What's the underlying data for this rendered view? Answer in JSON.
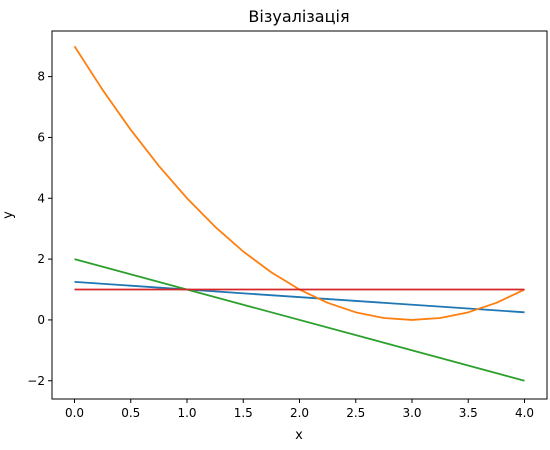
{
  "chart_data": {
    "type": "line",
    "title": "Візуалізація",
    "xlabel": "x",
    "ylabel": "y",
    "xlim": [
      -0.2,
      4.2
    ],
    "ylim": [
      -2.6,
      9.5
    ],
    "xticks": [
      0.0,
      0.5,
      1.0,
      1.5,
      2.0,
      2.5,
      3.0,
      3.5,
      4.0
    ],
    "xtick_labels": [
      "0.0",
      "0.5",
      "1.0",
      "1.5",
      "2.0",
      "2.5",
      "3.0",
      "3.5",
      "4.0"
    ],
    "yticks": [
      -2,
      0,
      2,
      4,
      6,
      8
    ],
    "ytick_labels": [
      "−2",
      "0",
      "2",
      "4",
      "6",
      "8"
    ],
    "grid": false,
    "series": [
      {
        "color": "#1f77b4",
        "x": [
          0,
          4
        ],
        "y": [
          1.25,
          0.25
        ]
      },
      {
        "color": "#ff7f0e",
        "x": [
          0,
          0.25,
          0.5,
          0.75,
          1,
          1.25,
          1.5,
          1.75,
          2,
          2.25,
          2.5,
          2.75,
          3,
          3.25,
          3.5,
          3.75,
          4
        ],
        "y": [
          9,
          7.5625,
          6.25,
          5.0625,
          4,
          3.0625,
          2.25,
          1.5625,
          1,
          0.5625,
          0.25,
          0.0625,
          0,
          0.0625,
          0.25,
          0.5625,
          1
        ]
      },
      {
        "color": "#2ca02c",
        "x": [
          0,
          4
        ],
        "y": [
          2,
          -2
        ]
      },
      {
        "color": "#d62728",
        "x": [
          0,
          4
        ],
        "y": [
          1,
          1
        ]
      }
    ]
  }
}
